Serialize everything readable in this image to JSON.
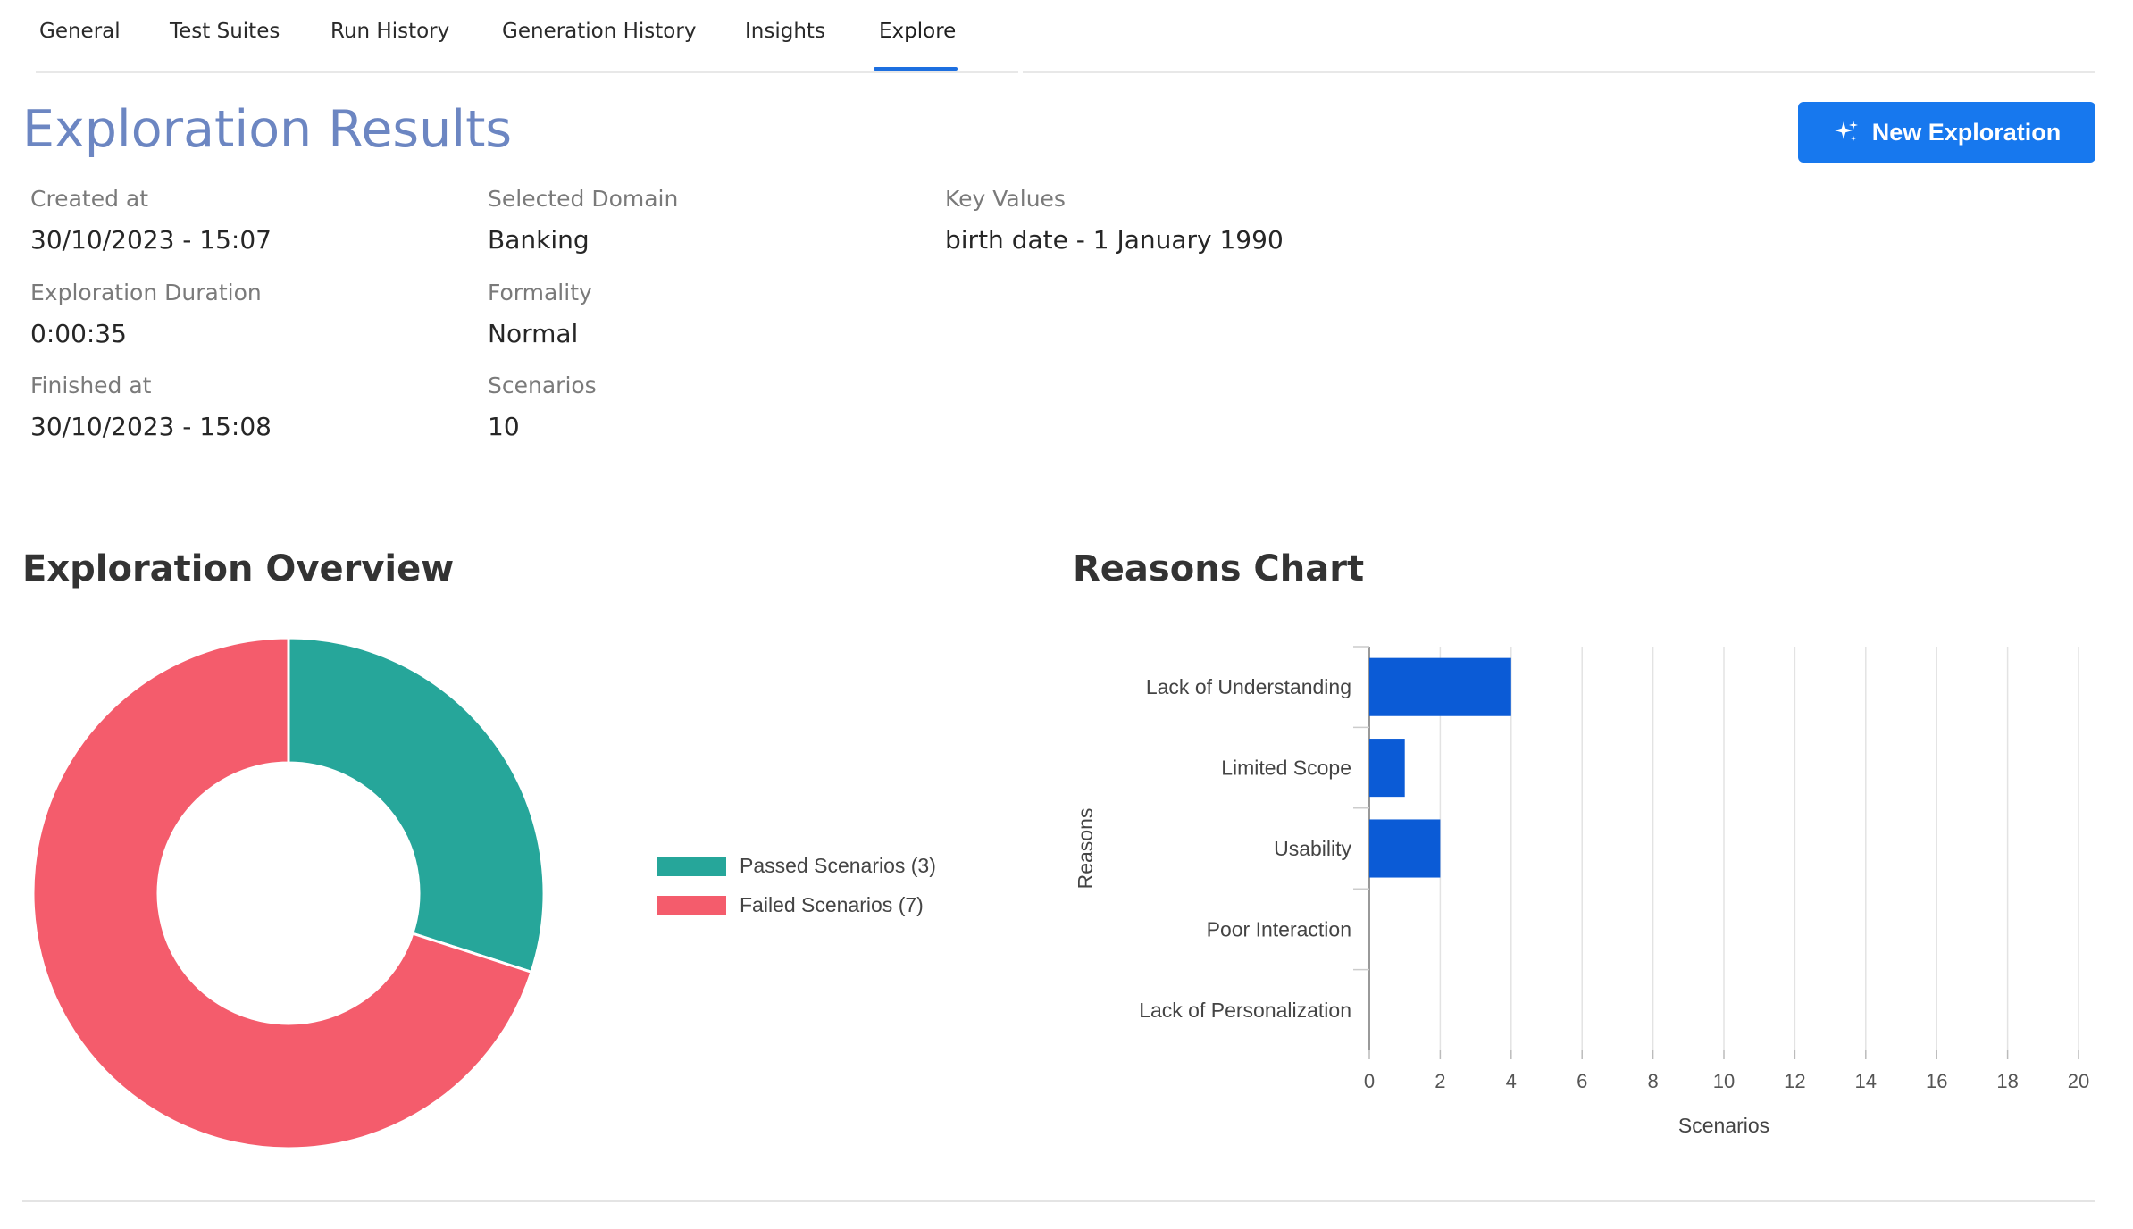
{
  "tabs": [
    {
      "label": "General"
    },
    {
      "label": "Test Suites"
    },
    {
      "label": "Run History"
    },
    {
      "label": "Generation History"
    },
    {
      "label": "Insights"
    },
    {
      "label": "Explore",
      "active": true
    }
  ],
  "header": {
    "title": "Exploration Results",
    "new_button": {
      "label": "New Exploration",
      "icon": "sparkle-icon"
    }
  },
  "meta": {
    "created_at": {
      "label": "Created at",
      "value": "30/10/2023 - 15:07"
    },
    "duration": {
      "label": "Exploration Duration",
      "value": "0:00:35"
    },
    "finished_at": {
      "label": "Finished at",
      "value": "30/10/2023 - 15:08"
    },
    "domain": {
      "label": "Selected Domain",
      "value": "Banking"
    },
    "formality": {
      "label": "Formality",
      "value": "Normal"
    },
    "scenarios": {
      "label": "Scenarios",
      "value": "10"
    },
    "key_values": {
      "label": "Key Values",
      "value": "birth date - 1 January 1990"
    }
  },
  "overview": {
    "title": "Exploration Overview"
  },
  "reasons": {
    "title": "Reasons Chart"
  },
  "colors": {
    "accent": "#1778ee",
    "passed": "#26a69a",
    "failed": "#f45c6c",
    "bar": "#0b5bd6",
    "title": "#6c86c2"
  },
  "chart_data": [
    {
      "type": "pie",
      "donut": true,
      "categories": [
        "Passed Scenarios (3)",
        "Failed Scenarios (7)"
      ],
      "values": [
        3,
        7
      ],
      "legend": "right"
    },
    {
      "type": "bar",
      "orientation": "horizontal",
      "categories": [
        "Lack of Understanding",
        "Limited Scope",
        "Usability",
        "Poor Interaction",
        "Lack of Personalization"
      ],
      "values": [
        4,
        1,
        2,
        0,
        0
      ],
      "xlabel": "Scenarios",
      "ylabel": "Reasons",
      "xlim": [
        0,
        20
      ],
      "xticks": [
        "0",
        "2",
        "4",
        "6",
        "8",
        "10",
        "12",
        "14",
        "16",
        "18",
        "20"
      ],
      "grid": true
    }
  ]
}
